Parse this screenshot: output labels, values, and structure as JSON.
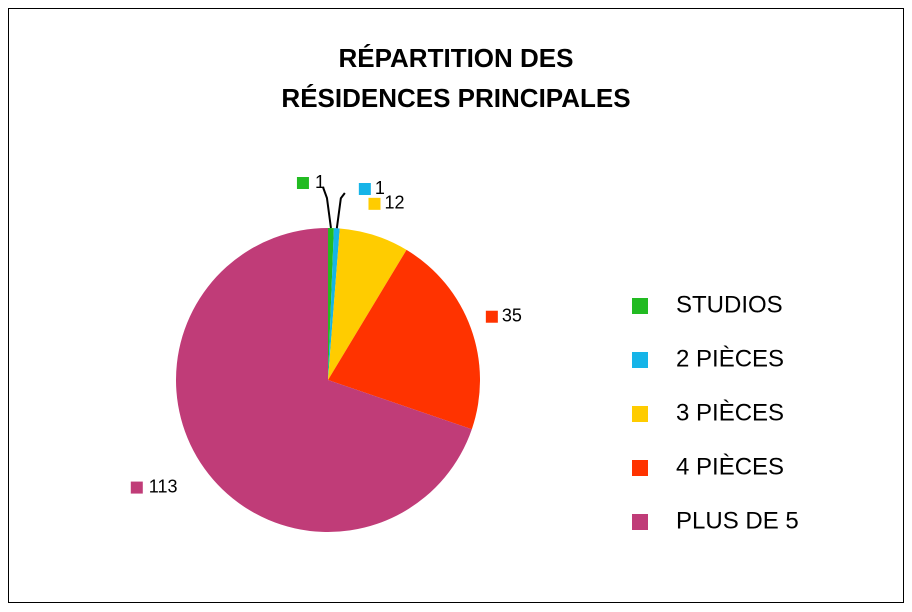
{
  "chart_data": {
    "type": "pie",
    "title": [
      "RÉPARTITION DES",
      "RÉSIDENCES PRINCIPALES"
    ],
    "categories": [
      "STUDIOS",
      "2 PIÈCES",
      "3 PIÈCES",
      "4 PIÈCES",
      "PLUS DE 5"
    ],
    "values": [
      1,
      1,
      12,
      35,
      113
    ],
    "colors": [
      "#22bb22",
      "#16b4e8",
      "#ffcc00",
      "#ff3300",
      "#c03c78"
    ],
    "legend": "right"
  }
}
